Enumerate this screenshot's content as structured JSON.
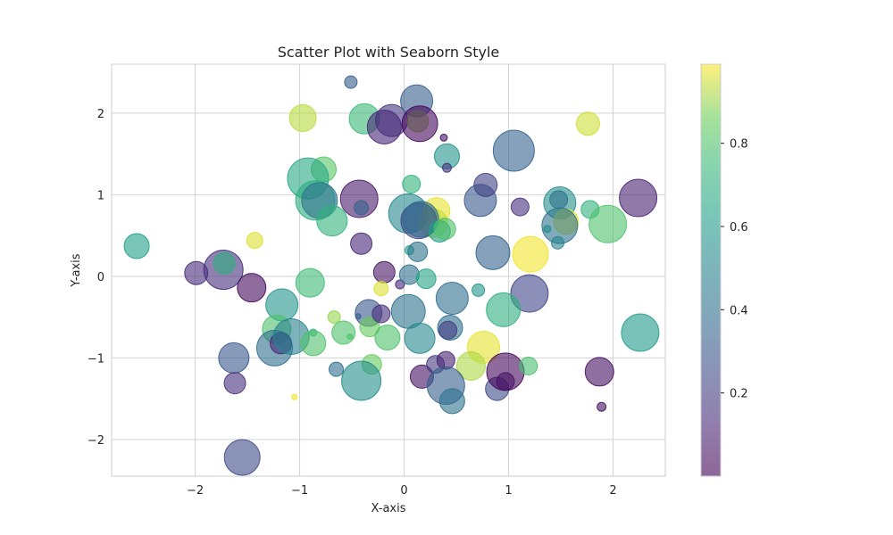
{
  "chart_data": {
    "type": "scatter",
    "title": "Scatter Plot with Seaborn Style",
    "xlabel": "X-axis",
    "ylabel": "Y-axis",
    "xlim": [
      -2.8,
      2.5
    ],
    "ylim": [
      -2.45,
      2.6
    ],
    "xticks": [
      -2,
      -1,
      0,
      1,
      2
    ],
    "yticks": [
      -2,
      -1,
      0,
      1,
      2
    ],
    "xtick_labels": [
      "−2",
      "−1",
      "0",
      "1",
      "2"
    ],
    "ytick_labels": [
      "−2",
      "−1",
      "0",
      "1",
      "2"
    ],
    "grid": true,
    "colormap": "viridis",
    "alpha": 0.6,
    "colorbar": {
      "range": [
        0.0,
        0.99
      ],
      "ticks": [
        0.2,
        0.4,
        0.6,
        0.8
      ],
      "tick_labels": [
        "0.2",
        "0.4",
        "0.6",
        "0.8"
      ]
    },
    "points": [
      {
        "x": -0.51,
        "y": 2.38,
        "c": 0.32,
        "r": 7
      },
      {
        "x": -0.97,
        "y": 1.94,
        "c": 0.93,
        "r": 15
      },
      {
        "x": -0.38,
        "y": 1.93,
        "c": 0.75,
        "r": 17
      },
      {
        "x": -0.12,
        "y": 1.91,
        "c": 0.18,
        "r": 18
      },
      {
        "x": -0.19,
        "y": 1.83,
        "c": 0.12,
        "r": 19
      },
      {
        "x": 0.12,
        "y": 2.15,
        "c": 0.33,
        "r": 18
      },
      {
        "x": 0.13,
        "y": 1.9,
        "c": 0.9,
        "r": 12
      },
      {
        "x": 0.15,
        "y": 1.87,
        "c": 0.02,
        "r": 20
      },
      {
        "x": 0.38,
        "y": 1.7,
        "c": 0.05,
        "r": 4
      },
      {
        "x": 0.41,
        "y": 1.47,
        "c": 0.58,
        "r": 14
      },
      {
        "x": 0.41,
        "y": 1.33,
        "c": 0.17,
        "r": 5
      },
      {
        "x": 1.05,
        "y": 1.54,
        "c": 0.35,
        "r": 23
      },
      {
        "x": 1.76,
        "y": 1.87,
        "c": 0.95,
        "r": 13
      },
      {
        "x": -0.77,
        "y": 1.31,
        "c": 0.82,
        "r": 14
      },
      {
        "x": -0.92,
        "y": 1.2,
        "c": 0.66,
        "r": 23
      },
      {
        "x": -0.85,
        "y": 0.93,
        "c": 0.7,
        "r": 22
      },
      {
        "x": -0.81,
        "y": 0.93,
        "c": 0.42,
        "r": 20
      },
      {
        "x": -0.69,
        "y": 0.68,
        "c": 0.72,
        "r": 17
      },
      {
        "x": -0.43,
        "y": 0.95,
        "c": 0.08,
        "r": 21
      },
      {
        "x": -0.41,
        "y": 0.84,
        "c": 0.35,
        "r": 8
      },
      {
        "x": 0.07,
        "y": 1.13,
        "c": 0.72,
        "r": 10
      },
      {
        "x": 0.04,
        "y": 0.77,
        "c": 0.52,
        "r": 22
      },
      {
        "x": 0.31,
        "y": 0.8,
        "c": 0.97,
        "r": 15
      },
      {
        "x": 0.28,
        "y": 0.65,
        "c": 0.94,
        "r": 16
      },
      {
        "x": 0.14,
        "y": 0.68,
        "c": 0.22,
        "r": 20
      },
      {
        "x": 0.16,
        "y": 0.7,
        "c": 0.4,
        "r": 20
      },
      {
        "x": 0.34,
        "y": 0.55,
        "c": 0.62,
        "r": 12
      },
      {
        "x": 0.39,
        "y": 0.58,
        "c": 0.8,
        "r": 12
      },
      {
        "x": 0.73,
        "y": 0.93,
        "c": 0.3,
        "r": 18
      },
      {
        "x": 0.78,
        "y": 1.12,
        "c": 0.22,
        "r": 13
      },
      {
        "x": 1.11,
        "y": 0.85,
        "c": 0.15,
        "r": 10
      },
      {
        "x": 1.48,
        "y": 0.94,
        "c": 0.25,
        "r": 10
      },
      {
        "x": 1.49,
        "y": 0.9,
        "c": 0.55,
        "r": 18
      },
      {
        "x": 1.55,
        "y": 0.67,
        "c": 0.97,
        "r": 14
      },
      {
        "x": 1.49,
        "y": 0.62,
        "c": 0.42,
        "r": 20
      },
      {
        "x": 1.37,
        "y": 0.58,
        "c": 0.55,
        "r": 4
      },
      {
        "x": 1.47,
        "y": 0.41,
        "c": 0.5,
        "r": 7
      },
      {
        "x": 1.78,
        "y": 0.82,
        "c": 0.72,
        "r": 10
      },
      {
        "x": 1.95,
        "y": 0.64,
        "c": 0.8,
        "r": 21
      },
      {
        "x": 2.24,
        "y": 0.96,
        "c": 0.1,
        "r": 21
      },
      {
        "x": -2.56,
        "y": 0.37,
        "c": 0.62,
        "r": 14
      },
      {
        "x": -1.43,
        "y": 0.44,
        "c": 0.96,
        "r": 9
      },
      {
        "x": -1.99,
        "y": 0.04,
        "c": 0.14,
        "r": 13
      },
      {
        "x": -1.73,
        "y": 0.08,
        "c": 0.15,
        "r": 22
      },
      {
        "x": -1.72,
        "y": 0.16,
        "c": 0.7,
        "r": 12
      },
      {
        "x": -1.46,
        "y": -0.14,
        "c": 0.03,
        "r": 16
      },
      {
        "x": -0.41,
        "y": 0.4,
        "c": 0.12,
        "r": 12
      },
      {
        "x": -0.9,
        "y": -0.08,
        "c": 0.76,
        "r": 16
      },
      {
        "x": -0.19,
        "y": 0.05,
        "c": 0.06,
        "r": 12
      },
      {
        "x": -0.22,
        "y": -0.15,
        "c": 0.96,
        "r": 8
      },
      {
        "x": -0.04,
        "y": -0.1,
        "c": 0.12,
        "r": 5
      },
      {
        "x": 0.05,
        "y": 0.32,
        "c": 0.63,
        "r": 5
      },
      {
        "x": 0.13,
        "y": 0.3,
        "c": 0.42,
        "r": 11
      },
      {
        "x": 0.05,
        "y": 0.02,
        "c": 0.4,
        "r": 11
      },
      {
        "x": 0.21,
        "y": -0.03,
        "c": 0.65,
        "r": 11
      },
      {
        "x": 0.46,
        "y": -0.27,
        "c": 0.4,
        "r": 18
      },
      {
        "x": 0.71,
        "y": -0.17,
        "c": 0.58,
        "r": 7
      },
      {
        "x": 0.85,
        "y": 0.29,
        "c": 0.35,
        "r": 19
      },
      {
        "x": 1.21,
        "y": 0.27,
        "c": 0.98,
        "r": 20
      },
      {
        "x": 1.2,
        "y": -0.21,
        "c": 0.23,
        "r": 21
      },
      {
        "x": 0.95,
        "y": -0.41,
        "c": 0.7,
        "r": 19
      },
      {
        "x": -1.17,
        "y": -0.35,
        "c": 0.58,
        "r": 18
      },
      {
        "x": -1.22,
        "y": -0.65,
        "c": 0.8,
        "r": 16
      },
      {
        "x": -1.24,
        "y": -0.88,
        "c": 0.4,
        "r": 20
      },
      {
        "x": -1.18,
        "y": -0.82,
        "c": 0.13,
        "r": 12
      },
      {
        "x": -1.08,
        "y": -0.74,
        "c": 0.48,
        "r": 20
      },
      {
        "x": -0.87,
        "y": -0.69,
        "c": 0.7,
        "r": 4
      },
      {
        "x": -0.87,
        "y": -0.82,
        "c": 0.8,
        "r": 14
      },
      {
        "x": -0.67,
        "y": -0.5,
        "c": 0.9,
        "r": 7
      },
      {
        "x": -0.58,
        "y": -0.69,
        "c": 0.8,
        "r": 13
      },
      {
        "x": -0.52,
        "y": -0.74,
        "c": 0.8,
        "r": 3
      },
      {
        "x": -0.44,
        "y": -0.49,
        "c": 0.4,
        "r": 3
      },
      {
        "x": -0.34,
        "y": -0.45,
        "c": 0.3,
        "r": 15
      },
      {
        "x": -0.33,
        "y": -0.62,
        "c": 0.85,
        "r": 11
      },
      {
        "x": -0.22,
        "y": -0.46,
        "c": 0.15,
        "r": 10
      },
      {
        "x": 0.04,
        "y": -0.43,
        "c": 0.42,
        "r": 19
      },
      {
        "x": 0.15,
        "y": -0.76,
        "c": 0.52,
        "r": 17
      },
      {
        "x": -0.16,
        "y": -0.75,
        "c": 0.8,
        "r": 14
      },
      {
        "x": 0.44,
        "y": -0.63,
        "c": 0.4,
        "r": 14
      },
      {
        "x": 0.42,
        "y": -0.66,
        "c": 0.2,
        "r": 10
      },
      {
        "x": 0.76,
        "y": -0.87,
        "c": 0.97,
        "r": 18
      },
      {
        "x": 0.64,
        "y": -1.1,
        "c": 0.92,
        "r": 16
      },
      {
        "x": -1.63,
        "y": -1.0,
        "c": 0.3,
        "r": 17
      },
      {
        "x": -1.62,
        "y": -1.31,
        "c": 0.15,
        "r": 12
      },
      {
        "x": -0.65,
        "y": -1.14,
        "c": 0.4,
        "r": 8
      },
      {
        "x": -0.31,
        "y": -1.08,
        "c": 0.85,
        "r": 11
      },
      {
        "x": -0.41,
        "y": -1.28,
        "c": 0.55,
        "r": 22
      },
      {
        "x": 0.17,
        "y": -1.23,
        "c": 0.05,
        "r": 13
      },
      {
        "x": 0.3,
        "y": -1.08,
        "c": 0.2,
        "r": 10
      },
      {
        "x": 0.4,
        "y": -1.03,
        "c": 0.1,
        "r": 10
      },
      {
        "x": 0.4,
        "y": -1.34,
        "c": 0.33,
        "r": 21
      },
      {
        "x": 0.46,
        "y": -1.53,
        "c": 0.42,
        "r": 14
      },
      {
        "x": 0.89,
        "y": -1.38,
        "c": 0.25,
        "r": 13
      },
      {
        "x": 0.97,
        "y": -1.29,
        "c": 0.12,
        "r": 10
      },
      {
        "x": 0.97,
        "y": -1.17,
        "c": 0.02,
        "r": 21
      },
      {
        "x": 1.19,
        "y": -1.1,
        "c": 0.78,
        "r": 10
      },
      {
        "x": 2.26,
        "y": -0.69,
        "c": 0.6,
        "r": 21
      },
      {
        "x": 1.87,
        "y": -1.17,
        "c": 0.04,
        "r": 16
      },
      {
        "x": 1.89,
        "y": -1.6,
        "c": 0.05,
        "r": 5
      },
      {
        "x": -1.55,
        "y": -2.22,
        "c": 0.25,
        "r": 20
      },
      {
        "x": -1.05,
        "y": -1.48,
        "c": 0.98,
        "r": 3
      }
    ]
  }
}
